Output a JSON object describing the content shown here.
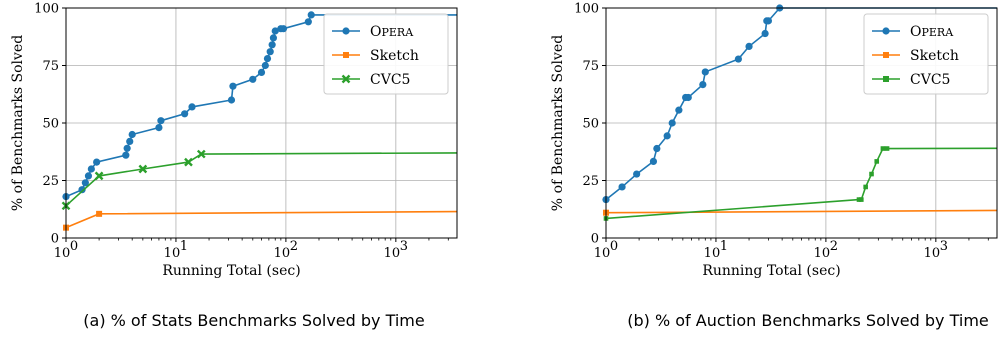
{
  "chart_data": [
    {
      "type": "line",
      "xscale": "log",
      "xlim": [
        1,
        3600
      ],
      "ylim": [
        0,
        100
      ],
      "xticks": [
        1,
        10,
        100,
        1000
      ],
      "xticklabels": [
        "10^0",
        "10^1",
        "10^2",
        "10^3"
      ],
      "yticks": [
        0,
        25,
        50,
        75,
        100
      ],
      "xlabel": "Running Total (sec)",
      "ylabel": "% of Benchmarks Solved",
      "grid": true,
      "legend": "top-right",
      "caption": "(a) % of Stats Benchmarks Solved by Time",
      "series": [
        {
          "name": "Opera",
          "color": "#1f77b4",
          "marker": "circle",
          "dash": false,
          "x": [
            1,
            1.4,
            1.5,
            1.6,
            1.7,
            1.9,
            3.5,
            3.6,
            3.8,
            4,
            7,
            7.3,
            12,
            14,
            32,
            33,
            50,
            60,
            65,
            68,
            72,
            75,
            77,
            80,
            90,
            95,
            160,
            170,
            3600
          ],
          "y": [
            18,
            21,
            24,
            27,
            30,
            33,
            36,
            39,
            42,
            45,
            48,
            51,
            54,
            57,
            60,
            66,
            69,
            72,
            75,
            78,
            81,
            84,
            87,
            90,
            91,
            91,
            94,
            97,
            97
          ]
        },
        {
          "name": "Sketch",
          "color": "#ff7f0e",
          "marker": "square",
          "dash": false,
          "x": [
            1,
            2,
            3600
          ],
          "y": [
            4.5,
            10.5,
            11.5
          ]
        },
        {
          "name": "CVC5",
          "color": "#2ca02c",
          "marker": "x",
          "dash": false,
          "x": [
            1,
            2,
            5,
            13,
            17,
            3600
          ],
          "y": [
            14,
            27,
            30,
            33,
            36.5,
            37
          ]
        }
      ]
    },
    {
      "type": "line",
      "xscale": "log",
      "xlim": [
        1,
        3600
      ],
      "ylim": [
        0,
        100
      ],
      "xticks": [
        1,
        10,
        100,
        1000
      ],
      "xticklabels": [
        "10^0",
        "10^1",
        "10^2",
        "10^3"
      ],
      "yticks": [
        0,
        25,
        50,
        75,
        100
      ],
      "xlabel": "Running Total (sec)",
      "ylabel": "% of Benchmarks Solved",
      "grid": true,
      "legend": "top-right",
      "caption": "(b) % of Auction Benchmarks Solved by Time",
      "series": [
        {
          "name": "Opera",
          "color": "#1f77b4",
          "marker": "circle",
          "dash": false,
          "x": [
            1,
            1.4,
            1.9,
            2.7,
            2.9,
            3.6,
            4,
            4.6,
            5.3,
            5.6,
            7.6,
            8,
            16,
            20,
            28,
            29,
            30,
            38,
            3600
          ],
          "y": [
            16.7,
            22.2,
            27.8,
            33.3,
            38.9,
            44.4,
            50,
            55.6,
            61.1,
            61.1,
            66.7,
            72.2,
            77.8,
            83.3,
            88.9,
            94.4,
            94.4,
            100,
            100
          ]
        },
        {
          "name": "Sketch",
          "color": "#ff7f0e",
          "marker": "square",
          "dash": false,
          "x": [
            1,
            3600
          ],
          "y": [
            11,
            12
          ]
        },
        {
          "name": "CVC5",
          "color": "#2ca02c",
          "marker": "square-small",
          "dash": false,
          "x": [
            1,
            200,
            210,
            230,
            260,
            290,
            330,
            360,
            3600
          ],
          "y": [
            8.5,
            16.7,
            16.7,
            22.2,
            27.8,
            33.3,
            38.9,
            38.9,
            39
          ]
        }
      ]
    }
  ]
}
